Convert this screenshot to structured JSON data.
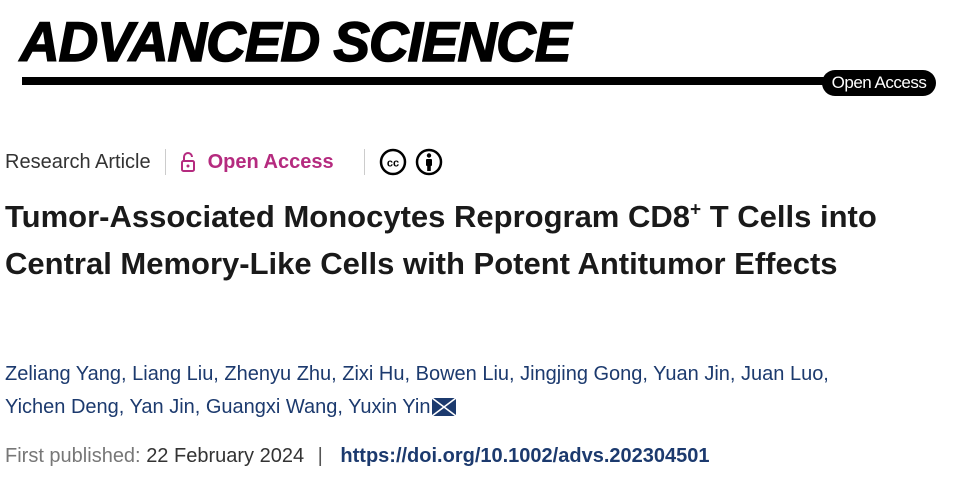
{
  "journal": {
    "logo_text": "ADVANCED SCIENCE",
    "badge": "Open Access"
  },
  "meta": {
    "article_type": "Research Article",
    "access_label": "Open Access",
    "access_color": "#b52b7f",
    "license_icons": [
      "creative-commons-icon",
      "attribution-icon"
    ]
  },
  "title": {
    "main": "Tumor-Associated Monocytes Reprogram CD8",
    "superscript": "+",
    "rest": " T Cells into Central Memory-Like Cells with Potent Antitumor Effects"
  },
  "authors": {
    "line1": "Zeliang Yang, Liang Liu, Zhenyu Zhu, Zixi Hu, Bowen Liu, Jingjing Gong, Yuan Jin, Juan Luo,",
    "line2": "Yichen Deng, Yan Jin, Guangxi Wang, Yuxin Yin"
  },
  "publication": {
    "label": "First published:",
    "date": "22 February 2024",
    "separator": "|",
    "doi": "https://doi.org/10.1002/advs.202304501"
  }
}
